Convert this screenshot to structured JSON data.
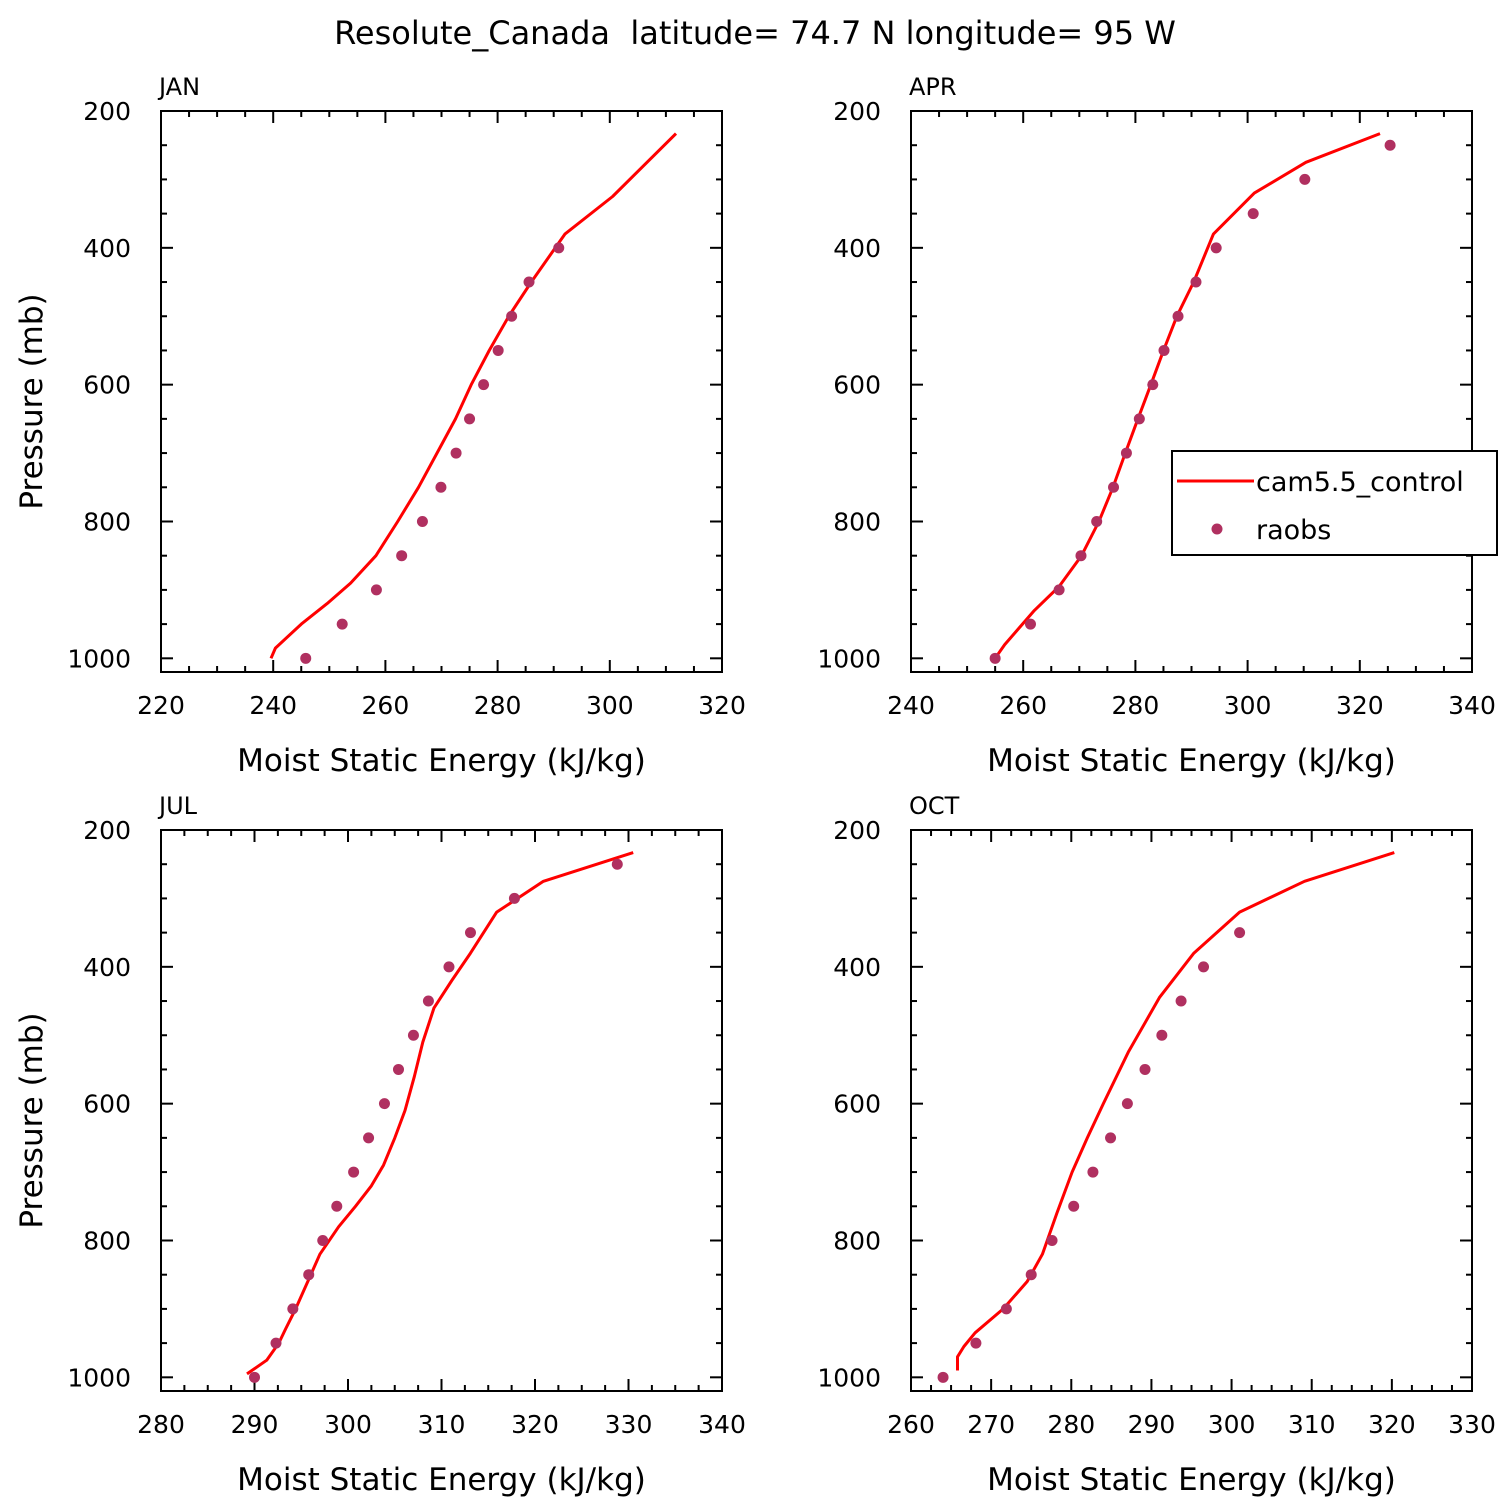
{
  "figure": {
    "title": "Resolute_Canada  latitude= 74.7 N longitude= 95 W"
  },
  "legend": {
    "entries": [
      {
        "label": "cam5.5_control",
        "kind": "line",
        "color": "#ff0000"
      },
      {
        "label": "raobs",
        "kind": "marker",
        "color": "#b03060"
      }
    ]
  },
  "chart_data": [
    {
      "type": "line",
      "panel_label": "JAN",
      "xlabel": "Moist Static Energy (kJ/kg)",
      "ylabel": "Pressure (mb)",
      "xlim": [
        220,
        320
      ],
      "ylim": [
        1020,
        200
      ],
      "xticks": [
        "220",
        "240",
        "260",
        "280",
        "300",
        "320"
      ],
      "yticks": [
        "200",
        "400",
        "600",
        "800",
        "1000"
      ],
      "series": [
        {
          "name": "cam5.5_control",
          "kind": "line",
          "color": "#ff0000",
          "x": [
            239.6,
            240.4,
            245.0,
            249.6,
            253.8,
            258.3,
            262.2,
            265.9,
            269.2,
            272.5,
            275.3,
            278.5,
            282.0,
            286.0,
            292.0,
            300.5,
            311.8
          ],
          "y": [
            1000,
            985,
            950,
            920,
            890,
            850,
            800,
            750,
            700,
            650,
            600,
            550,
            500,
            450,
            380,
            325,
            233
          ]
        },
        {
          "name": "raobs",
          "kind": "scatter",
          "color": "#b03060",
          "x": [
            245.8,
            252.3,
            258.4,
            262.9,
            266.6,
            269.9,
            272.6,
            275.0,
            277.5,
            280.1,
            282.5,
            285.6,
            290.9
          ],
          "y": [
            1000,
            950,
            900,
            850,
            800,
            750,
            700,
            650,
            600,
            550,
            500,
            450,
            400
          ]
        }
      ]
    },
    {
      "type": "line",
      "panel_label": "APR",
      "xlabel": "Moist Static Energy (kJ/kg)",
      "ylabel": "",
      "xlim": [
        240,
        340
      ],
      "ylim": [
        1020,
        200
      ],
      "xticks": [
        "240",
        "260",
        "280",
        "300",
        "320",
        "340"
      ],
      "yticks": [
        "200",
        "400",
        "600",
        "800",
        "1000"
      ],
      "legend": true,
      "series": [
        {
          "name": "cam5.5_control",
          "kind": "line",
          "color": "#ff0000",
          "x": [
            255.0,
            256.7,
            262.0,
            266.4,
            270.4,
            273.5,
            276.0,
            278.2,
            280.0,
            281.6,
            283.2,
            285.0,
            287.4,
            290.4,
            293.9,
            301.2,
            310.4,
            323.6
          ],
          "y": [
            1000,
            980,
            930,
            895,
            850,
            800,
            750,
            700,
            660,
            625,
            590,
            550,
            500,
            450,
            380,
            320,
            275,
            233
          ]
        },
        {
          "name": "raobs",
          "kind": "scatter",
          "color": "#b03060",
          "x": [
            255.0,
            261.3,
            266.4,
            270.3,
            273.1,
            276.1,
            278.4,
            280.7,
            283.1,
            285.1,
            287.6,
            290.8,
            294.4,
            301.0,
            310.2,
            325.4
          ],
          "y": [
            1000,
            950,
            900,
            850,
            800,
            750,
            700,
            650,
            600,
            550,
            500,
            450,
            400,
            350,
            300,
            250
          ]
        }
      ]
    },
    {
      "type": "line",
      "panel_label": "JUL",
      "xlabel": "Moist Static Energy (kJ/kg)",
      "ylabel": "Pressure (mb)",
      "xlim": [
        280,
        340
      ],
      "ylim": [
        1020,
        200
      ],
      "xticks": [
        "280",
        "290",
        "300",
        "310",
        "320",
        "330",
        "340"
      ],
      "yticks": [
        "200",
        "400",
        "600",
        "800",
        "1000"
      ],
      "series": [
        {
          "name": "cam5.5_control",
          "kind": "line",
          "color": "#ff0000",
          "x": [
            289.2,
            291.3,
            292.6,
            293.3,
            294.4,
            295.7,
            297.0,
            299.0,
            300.8,
            302.5,
            303.8,
            305.0,
            306.1,
            307.1,
            308.0,
            309.2,
            311.1,
            313.1,
            315.9,
            320.9,
            330.5
          ],
          "y": [
            995,
            975,
            950,
            930,
            900,
            860,
            820,
            780,
            750,
            720,
            690,
            650,
            610,
            560,
            510,
            460,
            420,
            380,
            320,
            275,
            233
          ]
        },
        {
          "name": "raobs",
          "kind": "scatter",
          "color": "#b03060",
          "x": [
            290.0,
            292.3,
            294.1,
            295.8,
            297.3,
            298.8,
            300.6,
            302.2,
            303.9,
            305.4,
            307.0,
            308.6,
            310.8,
            313.1,
            317.8,
            328.8
          ],
          "y": [
            1000,
            950,
            900,
            850,
            800,
            750,
            700,
            650,
            600,
            550,
            500,
            450,
            400,
            350,
            300,
            250
          ]
        }
      ]
    },
    {
      "type": "line",
      "panel_label": "OCT",
      "xlabel": "Moist Static Energy (kJ/kg)",
      "ylabel": "",
      "xlim": [
        260,
        330
      ],
      "ylim": [
        1020,
        200
      ],
      "xticks": [
        "260",
        "270",
        "280",
        "290",
        "300",
        "310",
        "320",
        "330"
      ],
      "yticks": [
        "200",
        "400",
        "600",
        "800",
        "1000"
      ],
      "series": [
        {
          "name": "cam5.5_control",
          "kind": "line",
          "color": "#ff0000",
          "x": [
            265.8,
            265.8,
            266.6,
            268.0,
            271.5,
            274.5,
            276.4,
            278.2,
            280.1,
            282.0,
            284.0,
            287.1,
            291.0,
            295.3,
            301.0,
            309.1,
            320.3
          ],
          "y": [
            990,
            970,
            955,
            935,
            900,
            860,
            820,
            760,
            700,
            650,
            600,
            525,
            445,
            380,
            320,
            275,
            233
          ]
        },
        {
          "name": "raobs",
          "kind": "scatter",
          "color": "#b03060",
          "x": [
            264.0,
            268.1,
            271.9,
            275.0,
            277.6,
            280.3,
            282.7,
            284.9,
            287.0,
            289.2,
            291.3,
            293.7,
            296.5,
            301.0
          ],
          "y": [
            1000,
            950,
            900,
            850,
            800,
            750,
            700,
            650,
            600,
            550,
            500,
            450,
            400,
            350
          ]
        }
      ]
    }
  ]
}
